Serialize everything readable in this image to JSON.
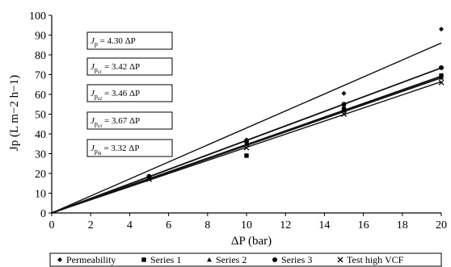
{
  "chart_data": {
    "type": "scatter",
    "xlabel": "ΔP (bar)",
    "ylabel": "Jp (L m−2 h−1)",
    "xlim": [
      0,
      20
    ],
    "ylim": [
      0,
      100
    ],
    "xticks": [
      0,
      2,
      4,
      6,
      8,
      10,
      12,
      14,
      16,
      18,
      20
    ],
    "yticks": [
      0,
      10,
      20,
      30,
      40,
      50,
      60,
      70,
      80,
      90,
      100
    ],
    "grid": false,
    "legend_position": "bottom",
    "series": [
      {
        "name": "Permeability",
        "marker": "diamond",
        "x": [
          5,
          10,
          15,
          20
        ],
        "y": [
          18,
          37,
          60.5,
          93
        ]
      },
      {
        "name": "Series 1",
        "marker": "square",
        "x": [
          5,
          10,
          15,
          20
        ],
        "y": [
          17.5,
          29,
          52,
          69.5
        ]
      },
      {
        "name": "Series 2",
        "marker": "triangle",
        "x": [
          5,
          10,
          15,
          20
        ],
        "y": [
          17.8,
          35,
          54,
          68.5
        ]
      },
      {
        "name": "Series 3",
        "marker": "circle",
        "x": [
          5,
          10,
          15,
          20
        ],
        "y": [
          18.5,
          36,
          55,
          73.5
        ]
      },
      {
        "name": "Test high VCF",
        "marker": "cross",
        "x": [
          5,
          10,
          15,
          20
        ],
        "y": [
          17,
          33,
          50,
          66
        ]
      }
    ],
    "fit_lines": [
      {
        "sub": "p",
        "subsub": "",
        "slope": 4.3,
        "label_rest": " = 4.30 ΔP"
      },
      {
        "sub": "p",
        "subsub": "s1",
        "slope": 3.42,
        "label_rest": " = 3.42 ΔP"
      },
      {
        "sub": "p",
        "subsub": "s2",
        "slope": 3.46,
        "label_rest": " = 3.46 ΔP"
      },
      {
        "sub": "p",
        "subsub": "s3",
        "slope": 3.67,
        "label_rest": " = 3.67 ΔP"
      },
      {
        "sub": "p",
        "subsub": "th",
        "slope": 3.32,
        "label_rest": " = 3.32 ΔP"
      }
    ]
  }
}
